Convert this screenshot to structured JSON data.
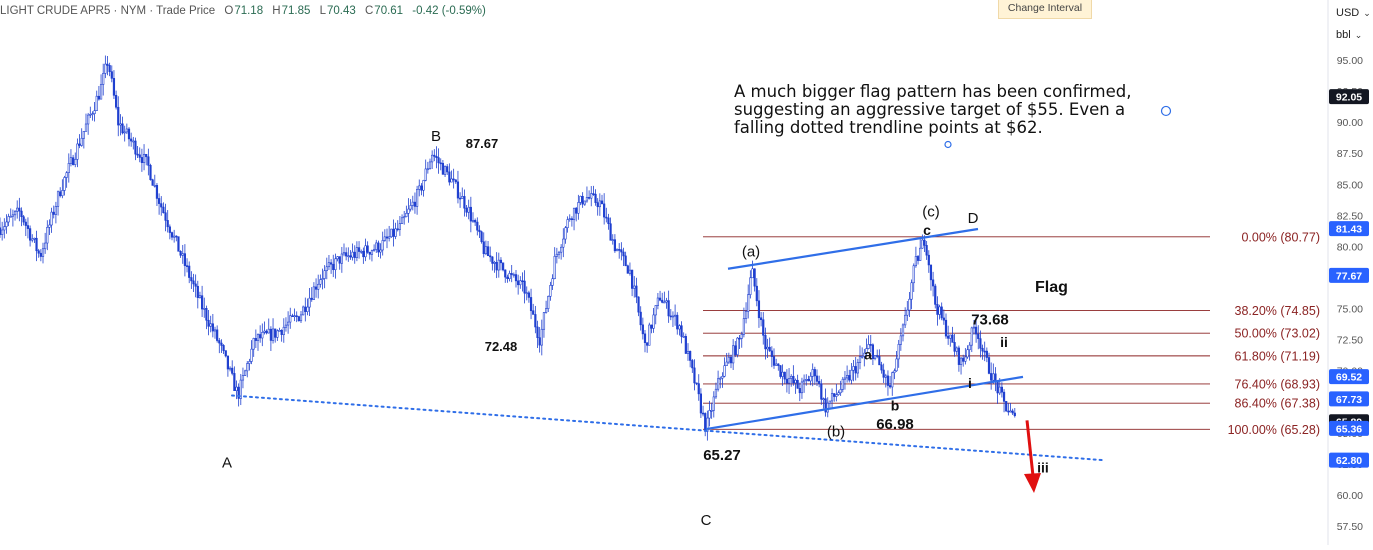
{
  "header": {
    "symbol": "LIGHT CRUDE APR5 · NYM · Trade Price",
    "open_label": "O",
    "open": "71.18",
    "high_label": "H",
    "high": "71.85",
    "low_label": "L",
    "low": "70.43",
    "close_label": "C",
    "close": "70.61",
    "change": "-0.42 (-0.59%)"
  },
  "change_interval_label": "Change Interval",
  "currency_select": "USD",
  "unit_select": "bbl",
  "annotation_text": "A much bigger flag pattern has been confirmed, suggesting an aggressive target of $55. Even a falling dotted trendline points at $62.",
  "flag_label": "Flag",
  "colors": {
    "candle": "#1e3fcf",
    "trendline": "#2f6ee8",
    "fib": "#8b2323",
    "arrow": "#e01010",
    "tag_blue": "#2962ff",
    "tag_black": "#131722"
  },
  "chart_data": {
    "type": "candlestick",
    "ylim": [
      56.5,
      97.5
    ],
    "y_ticks": [
      "57.50",
      "60.00",
      "62.50",
      "65.00",
      "67.50",
      "70.00",
      "72.50",
      "75.00",
      "77.50",
      "80.00",
      "82.50",
      "85.00",
      "87.50",
      "90.00",
      "92.50",
      "95.00"
    ],
    "price_series": [
      {
        "i": 0,
        "v": 81.5
      },
      {
        "i": 20,
        "v": 82.8
      },
      {
        "i": 40,
        "v": 79.2
      },
      {
        "i": 60,
        "v": 84.5
      },
      {
        "i": 80,
        "v": 88.5
      },
      {
        "i": 100,
        "v": 92.5
      },
      {
        "i": 108,
        "v": 95.0
      },
      {
        "i": 118,
        "v": 90.0
      },
      {
        "i": 135,
        "v": 88.0
      },
      {
        "i": 148,
        "v": 86.5
      },
      {
        "i": 160,
        "v": 83.5
      },
      {
        "i": 180,
        "v": 79.5
      },
      {
        "i": 200,
        "v": 75.5
      },
      {
        "i": 220,
        "v": 72.0
      },
      {
        "i": 238,
        "v": 68.0
      },
      {
        "i": 255,
        "v": 72.5
      },
      {
        "i": 275,
        "v": 73.0
      },
      {
        "i": 300,
        "v": 74.5
      },
      {
        "i": 320,
        "v": 77.5
      },
      {
        "i": 340,
        "v": 79.0
      },
      {
        "i": 360,
        "v": 79.5
      },
      {
        "i": 380,
        "v": 80.0
      },
      {
        "i": 400,
        "v": 81.5
      },
      {
        "i": 420,
        "v": 84.5
      },
      {
        "i": 432,
        "v": 87.5
      },
      {
        "i": 450,
        "v": 85.5
      },
      {
        "i": 468,
        "v": 83.0
      },
      {
        "i": 485,
        "v": 79.5
      },
      {
        "i": 505,
        "v": 78.0
      },
      {
        "i": 525,
        "v": 76.5
      },
      {
        "i": 540,
        "v": 72.5
      },
      {
        "i": 555,
        "v": 79.0
      },
      {
        "i": 570,
        "v": 82.5
      },
      {
        "i": 585,
        "v": 84.0
      },
      {
        "i": 600,
        "v": 83.5
      },
      {
        "i": 615,
        "v": 80.0
      },
      {
        "i": 630,
        "v": 78.0
      },
      {
        "i": 645,
        "v": 72.0
      },
      {
        "i": 660,
        "v": 76.0
      },
      {
        "i": 680,
        "v": 73.5
      },
      {
        "i": 695,
        "v": 69.0
      },
      {
        "i": 706,
        "v": 65.3
      },
      {
        "i": 720,
        "v": 69.5
      },
      {
        "i": 740,
        "v": 72.5
      },
      {
        "i": 752,
        "v": 78.0
      },
      {
        "i": 765,
        "v": 72.0
      },
      {
        "i": 780,
        "v": 70.0
      },
      {
        "i": 800,
        "v": 68.5
      },
      {
        "i": 815,
        "v": 70.0
      },
      {
        "i": 825,
        "v": 67.0
      },
      {
        "i": 845,
        "v": 69.0
      },
      {
        "i": 870,
        "v": 72.0
      },
      {
        "i": 890,
        "v": 68.5
      },
      {
        "i": 905,
        "v": 74.0
      },
      {
        "i": 915,
        "v": 78.5
      },
      {
        "i": 925,
        "v": 80.7
      },
      {
        "i": 935,
        "v": 75.5
      },
      {
        "i": 950,
        "v": 72.5
      },
      {
        "i": 962,
        "v": 70.5
      },
      {
        "i": 975,
        "v": 73.7
      },
      {
        "i": 985,
        "v": 71.0
      },
      {
        "i": 995,
        "v": 69.0
      },
      {
        "i": 1005,
        "v": 67.2
      },
      {
        "i": 1015,
        "v": 66.0
      }
    ],
    "fib_levels": [
      {
        "label": "0.00% (80.77)",
        "value": 80.77
      },
      {
        "label": "38.20% (74.85)",
        "value": 74.85
      },
      {
        "label": "50.00% (73.02)",
        "value": 73.02
      },
      {
        "label": "61.80% (71.19)",
        "value": 71.19
      },
      {
        "label": "76.40% (68.93)",
        "value": 68.93
      },
      {
        "label": "86.40% (67.38)",
        "value": 67.38
      },
      {
        "label": "100.00% (65.28)",
        "value": 65.28
      }
    ],
    "price_tags": [
      {
        "label": "92.05",
        "value": 92.05,
        "style": "black"
      },
      {
        "label": "81.43",
        "value": 81.43,
        "style": "blue"
      },
      {
        "label": "77.67",
        "value": 77.67,
        "style": "blue"
      },
      {
        "label": "69.52",
        "value": 69.52,
        "style": "blue"
      },
      {
        "label": "67.73",
        "value": 67.73,
        "style": "blue"
      },
      {
        "label": "65.89",
        "value": 65.89,
        "style": "black"
      },
      {
        "label": "65.36",
        "value": 65.36,
        "style": "blue"
      },
      {
        "label": "62.80",
        "value": 62.8,
        "style": "blue"
      }
    ],
    "wave_labels": [
      {
        "text": "A",
        "i": 227,
        "v": 62.2,
        "size": 15,
        "weight": "normal"
      },
      {
        "text": "B",
        "i": 436,
        "v": 88.5,
        "size": 15,
        "weight": "normal"
      },
      {
        "text": "87.67",
        "i": 482,
        "v": 87.9,
        "size": 13,
        "weight": "bold"
      },
      {
        "text": "72.48",
        "i": 501,
        "v": 71.6,
        "size": 13,
        "weight": "bold"
      },
      {
        "text": "C",
        "i": 706,
        "v": 57.6,
        "size": 15,
        "weight": "normal"
      },
      {
        "text": "65.27",
        "i": 722,
        "v": 62.8,
        "size": 15,
        "weight": "bold"
      },
      {
        "text": "(a)",
        "i": 751,
        "v": 79.2,
        "size": 15,
        "weight": "normal"
      },
      {
        "text": "(b)",
        "i": 836,
        "v": 64.7,
        "size": 15,
        "weight": "normal"
      },
      {
        "text": "66.98",
        "i": 895,
        "v": 65.3,
        "size": 15,
        "weight": "bold"
      },
      {
        "text": "a",
        "i": 868,
        "v": 70.9,
        "size": 14,
        "weight": "bold"
      },
      {
        "text": "b",
        "i": 895,
        "v": 66.8,
        "size": 14,
        "weight": "bold"
      },
      {
        "text": "(c)",
        "i": 931,
        "v": 82.4,
        "size": 15,
        "weight": "normal"
      },
      {
        "text": "c",
        "i": 927,
        "v": 80.9,
        "size": 14,
        "weight": "bold"
      },
      {
        "text": "D",
        "i": 973,
        "v": 81.9,
        "size": 15,
        "weight": "normal"
      },
      {
        "text": "73.68",
        "i": 990,
        "v": 73.7,
        "size": 15,
        "weight": "bold"
      },
      {
        "text": "ii",
        "i": 1004,
        "v": 71.9,
        "size": 14,
        "weight": "bold"
      },
      {
        "text": "i",
        "i": 970,
        "v": 68.6,
        "size": 14,
        "weight": "bold"
      },
      {
        "text": "iii",
        "i": 1043,
        "v": 61.8,
        "size": 14,
        "weight": "bold"
      }
    ],
    "trendlines": [
      {
        "name": "upper-flag-line",
        "from": {
          "i": 728,
          "v": 78.2
        },
        "to": {
          "i": 978,
          "v": 81.4
        },
        "style": "solid"
      },
      {
        "name": "lower-flag-line",
        "from": {
          "i": 706,
          "v": 65.3
        },
        "to": {
          "i": 1023,
          "v": 69.5
        },
        "style": "solid"
      },
      {
        "name": "falling-dotted-trendline",
        "from": {
          "i": 232,
          "v": 68.0
        },
        "to": {
          "i": 1103,
          "v": 62.8
        },
        "style": "dotted"
      }
    ],
    "arrow": {
      "from": {
        "i": 1027,
        "v": 66.0
      },
      "to": {
        "i": 1033,
        "v": 60.4
      }
    },
    "anchor_points": [
      {
        "i": 1166,
        "v": 90.9
      },
      {
        "i": 948,
        "v": 88.2
      }
    ]
  }
}
